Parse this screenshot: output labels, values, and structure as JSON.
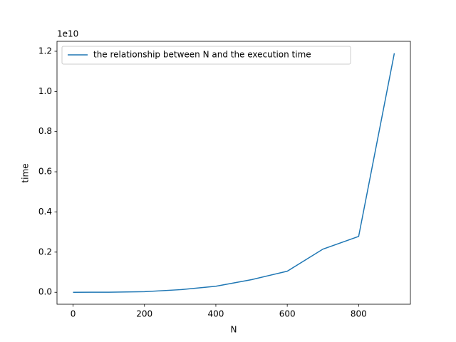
{
  "chart_data": {
    "type": "line",
    "x_label": "N",
    "y_label": "time",
    "y_offset_label": "1e10",
    "x": [
      0,
      100,
      200,
      300,
      400,
      500,
      600,
      700,
      800,
      900
    ],
    "series": [
      {
        "name": "the relationship between N and the execution time",
        "color": "#1f77b4",
        "values": [
          0.0,
          0.0005,
          0.003,
          0.013,
          0.03,
          0.063,
          0.105,
          0.215,
          0.278,
          1.19
        ]
      }
    ],
    "xlim": [
      -45,
      945
    ],
    "xticks": [
      0,
      200,
      400,
      600,
      800
    ],
    "ylim": [
      -0.0595,
      1.2495
    ],
    "yticks": [
      {
        "value": 0,
        "label": "0.0"
      },
      {
        "value": 0.2,
        "label": "0.2"
      },
      {
        "value": 0.4,
        "label": "0.4"
      },
      {
        "value": 0.6,
        "label": "0.6"
      },
      {
        "value": 0.8,
        "label": "0.8"
      },
      {
        "value": 1.0,
        "label": "1.0"
      },
      {
        "value": 1.2,
        "label": "1.2"
      }
    ],
    "legend": "upper left",
    "grid": false
  }
}
